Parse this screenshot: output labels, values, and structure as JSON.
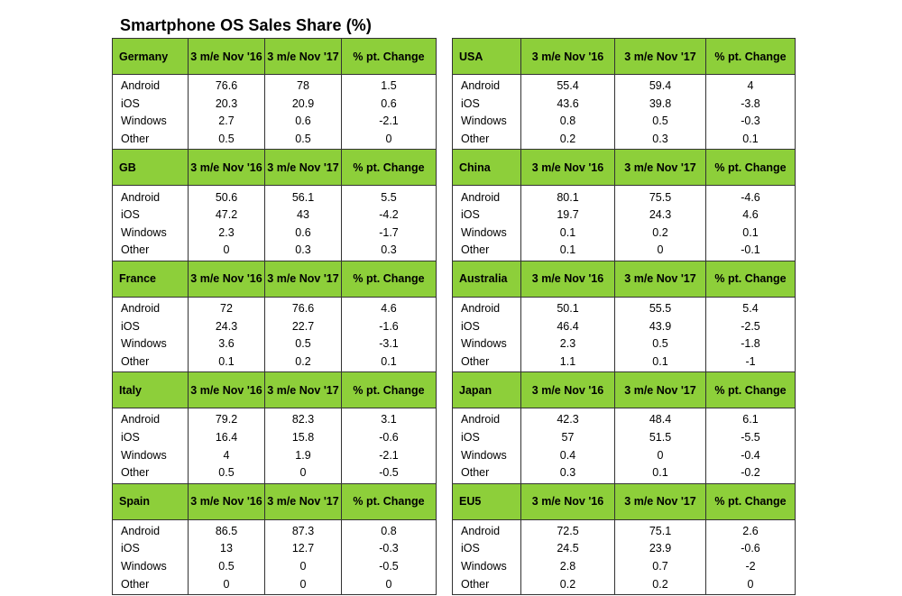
{
  "chart_data": {
    "type": "table",
    "title": "Smartphone OS Sales Share (%)",
    "columns": [
      "3 m/e Nov '16",
      "3 m/e Nov '17",
      "% pt. Change"
    ],
    "tables": [
      {
        "region": "Germany",
        "headers": [
          "3 m/e Nov '16",
          "3 m/e Nov '17",
          "% pt. Change"
        ],
        "rows": [
          {
            "os": "Android",
            "v16": "76.6",
            "v17": "78",
            "change": "1.5"
          },
          {
            "os": "iOS",
            "v16": "20.3",
            "v17": "20.9",
            "change": "0.6"
          },
          {
            "os": "Windows",
            "v16": "2.7",
            "v17": "0.6",
            "change": "-2.1"
          },
          {
            "os": "Other",
            "v16": "0.5",
            "v17": "0.5",
            "change": "0"
          }
        ]
      },
      {
        "region": "USA",
        "headers": [
          "3 m/e Nov '16",
          "3 m/e Nov '17",
          "% pt. Change"
        ],
        "rows": [
          {
            "os": "Android",
            "v16": "55.4",
            "v17": "59.4",
            "change": "4"
          },
          {
            "os": "iOS",
            "v16": "43.6",
            "v17": "39.8",
            "change": "-3.8"
          },
          {
            "os": "Windows",
            "v16": "0.8",
            "v17": "0.5",
            "change": "-0.3"
          },
          {
            "os": "Other",
            "v16": "0.2",
            "v17": "0.3",
            "change": "0.1"
          }
        ]
      },
      {
        "region": "GB",
        "headers": [
          "3 m/e Nov '16",
          "3 m/e Nov '17",
          "% pt. Change"
        ],
        "rows": [
          {
            "os": "Android",
            "v16": "50.6",
            "v17": "56.1",
            "change": "5.5"
          },
          {
            "os": "iOS",
            "v16": "47.2",
            "v17": "43",
            "change": "-4.2"
          },
          {
            "os": "Windows",
            "v16": "2.3",
            "v17": "0.6",
            "change": "-1.7"
          },
          {
            "os": "Other",
            "v16": "0",
            "v17": "0.3",
            "change": "0.3"
          }
        ]
      },
      {
        "region": "China",
        "headers": [
          "3 m/e Nov '16",
          "3 m/e Nov '17",
          "% pt. Change"
        ],
        "rows": [
          {
            "os": "Android",
            "v16": "80.1",
            "v17": "75.5",
            "change": "-4.6"
          },
          {
            "os": "iOS",
            "v16": "19.7",
            "v17": "24.3",
            "change": "4.6"
          },
          {
            "os": "Windows",
            "v16": "0.1",
            "v17": "0.2",
            "change": "0.1"
          },
          {
            "os": "Other",
            "v16": "0.1",
            "v17": "0",
            "change": "-0.1"
          }
        ]
      },
      {
        "region": "France",
        "headers": [
          "3 m/e Nov '16",
          "3 m/e Nov '17",
          "% pt. Change"
        ],
        "rows": [
          {
            "os": "Android",
            "v16": "72",
            "v17": "76.6",
            "change": "4.6"
          },
          {
            "os": "iOS",
            "v16": "24.3",
            "v17": "22.7",
            "change": "-1.6"
          },
          {
            "os": "Windows",
            "v16": "3.6",
            "v17": "0.5",
            "change": "-3.1"
          },
          {
            "os": "Other",
            "v16": "0.1",
            "v17": "0.2",
            "change": "0.1"
          }
        ]
      },
      {
        "region": "Australia",
        "headers": [
          "3 m/e Nov '16",
          "3 m/e Nov '17",
          "% pt. Change"
        ],
        "rows": [
          {
            "os": "Android",
            "v16": "50.1",
            "v17": "55.5",
            "change": "5.4"
          },
          {
            "os": "iOS",
            "v16": "46.4",
            "v17": "43.9",
            "change": "-2.5"
          },
          {
            "os": "Windows",
            "v16": "2.3",
            "v17": "0.5",
            "change": "-1.8"
          },
          {
            "os": "Other",
            "v16": "1.1",
            "v17": "0.1",
            "change": "-1"
          }
        ]
      },
      {
        "region": "Italy",
        "headers": [
          "3 m/e Nov '16",
          "3 m/e Nov '17",
          "% pt. Change"
        ],
        "rows": [
          {
            "os": "Android",
            "v16": "79.2",
            "v17": "82.3",
            "change": "3.1"
          },
          {
            "os": "iOS",
            "v16": "16.4",
            "v17": "15.8",
            "change": "-0.6"
          },
          {
            "os": "Windows",
            "v16": "4",
            "v17": "1.9",
            "change": "-2.1"
          },
          {
            "os": "Other",
            "v16": "0.5",
            "v17": "0",
            "change": "-0.5"
          }
        ]
      },
      {
        "region": "Japan",
        "headers": [
          "3 m/e Nov '16",
          "3 m/e Nov '17",
          "% pt. Change"
        ],
        "rows": [
          {
            "os": "Android",
            "v16": "42.3",
            "v17": "48.4",
            "change": "6.1"
          },
          {
            "os": "iOS",
            "v16": "57",
            "v17": "51.5",
            "change": "-5.5"
          },
          {
            "os": "Windows",
            "v16": "0.4",
            "v17": "0",
            "change": "-0.4"
          },
          {
            "os": "Other",
            "v16": "0.3",
            "v17": "0.1",
            "change": "-0.2"
          }
        ]
      },
      {
        "region": "Spain",
        "headers": [
          "3 m/e Nov '16",
          "3 m/e Nov '17",
          "% pt. Change"
        ],
        "rows": [
          {
            "os": "Android",
            "v16": "86.5",
            "v17": "87.3",
            "change": "0.8"
          },
          {
            "os": "iOS",
            "v16": "13",
            "v17": "12.7",
            "change": "-0.3"
          },
          {
            "os": "Windows",
            "v16": "0.5",
            "v17": "0",
            "change": "-0.5"
          },
          {
            "os": "Other",
            "v16": "0",
            "v17": "0",
            "change": "0"
          }
        ]
      },
      {
        "region": "EU5",
        "headers": [
          "3 m/e Nov '16",
          "3 m/e Nov '17",
          "% pt. Change"
        ],
        "rows": [
          {
            "os": "Android",
            "v16": "72.5",
            "v17": "75.1",
            "change": "2.6"
          },
          {
            "os": "iOS",
            "v16": "24.5",
            "v17": "23.9",
            "change": "-0.6"
          },
          {
            "os": "Windows",
            "v16": "2.8",
            "v17": "0.7",
            "change": "-2"
          },
          {
            "os": "Other",
            "v16": "0.2",
            "v17": "0.2",
            "change": "0"
          }
        ]
      }
    ],
    "colors": {
      "header_fill": "#8dcf3a",
      "border": "#333333",
      "background": "#ffffff"
    }
  }
}
